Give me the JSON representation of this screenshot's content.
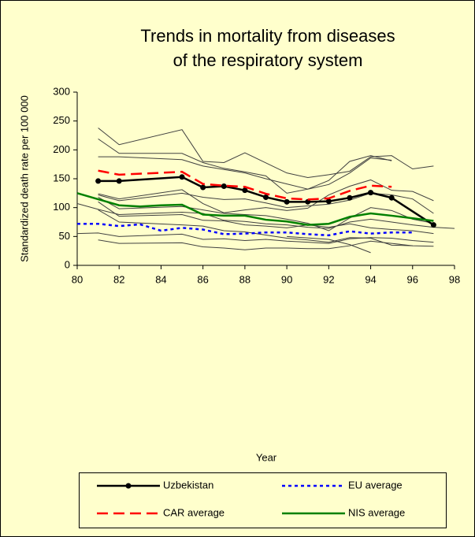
{
  "chart_data": {
    "type": "line",
    "title": [
      "Trends in mortality from diseases",
      "of the respiratory system"
    ],
    "x_label": "Year",
    "y_label": "Standardized death rate per 100 000",
    "xlim": [
      80,
      98
    ],
    "xticks": [
      80,
      82,
      84,
      86,
      88,
      90,
      92,
      94,
      96,
      98
    ],
    "ylim": [
      0,
      300
    ],
    "yticks": [
      0,
      50,
      100,
      150,
      200,
      250,
      300
    ],
    "grid": false,
    "legend": "bottom",
    "series": [
      {
        "color": "#404040",
        "x": [
          81,
          82,
          85,
          86,
          87,
          88,
          90,
          91,
          92,
          93,
          94,
          95,
          96,
          97
        ],
        "values": [
          238,
          209,
          235,
          180,
          178,
          195,
          160,
          152,
          157,
          163,
          188,
          190,
          167,
          172
        ]
      },
      {
        "color": "#404040",
        "x": [
          81,
          82,
          85,
          86,
          87,
          88,
          89,
          90,
          91,
          92,
          93,
          94,
          95
        ],
        "values": [
          219,
          194,
          194,
          178,
          168,
          162,
          155,
          125,
          132,
          147,
          180,
          190,
          181
        ]
      },
      {
        "color": "#404040",
        "x": [
          81,
          82,
          85,
          86,
          88,
          89,
          90,
          91,
          92,
          93,
          94,
          95
        ],
        "values": [
          188,
          188,
          183,
          172,
          160,
          150,
          141,
          132,
          140,
          160,
          186,
          182
        ]
      },
      {
        "color": "#404040",
        "x": [
          81,
          82,
          85,
          86,
          87,
          88,
          89,
          90,
          91,
          92,
          93,
          94,
          95,
          96,
          97
        ],
        "values": [
          124,
          115,
          131,
          107,
          91,
          96,
          100,
          95,
          99,
          122,
          137,
          148,
          130,
          128,
          112
        ]
      },
      {
        "color": "#404040",
        "x": [
          81,
          82,
          85,
          86,
          87,
          88,
          89,
          90,
          91,
          92,
          93,
          94,
          95,
          96,
          97
        ],
        "values": [
          122,
          112,
          125,
          118,
          114,
          115,
          108,
          100,
          103,
          106,
          113,
          125,
          122,
          115,
          90
        ]
      },
      {
        "color": "#404040",
        "x": [
          81,
          82,
          85,
          86,
          87,
          88,
          89,
          90,
          91,
          92,
          93,
          94,
          95,
          96,
          97
        ],
        "values": [
          118,
          98,
          102,
          96,
          90,
          88,
          86,
          80,
          73,
          60,
          82,
          100,
          95,
          80,
          73
        ]
      },
      {
        "color": "#404040",
        "x": [
          80,
          81,
          82,
          85,
          86,
          87,
          88,
          89,
          90,
          91,
          92,
          93,
          94,
          95,
          96,
          97,
          98
        ],
        "values": [
          107,
          97,
          88,
          92,
          90,
          78,
          76,
          72,
          70,
          66,
          64,
          75,
          80,
          75,
          70,
          66,
          64
        ]
      },
      {
        "color": "#404040",
        "x": [
          81,
          82,
          85,
          86,
          87,
          88,
          89,
          90,
          91,
          92,
          93,
          94,
          95,
          96,
          97
        ],
        "values": [
          110,
          85,
          88,
          78,
          77,
          70,
          68,
          65,
          70,
          66,
          72,
          65,
          62,
          60,
          55
        ]
      },
      {
        "color": "#404040",
        "x": [
          81,
          82,
          85,
          86,
          87,
          88,
          90,
          91,
          92,
          93,
          94,
          95,
          96
        ],
        "values": [
          96,
          75,
          70,
          68,
          60,
          58,
          47,
          44,
          40,
          48,
          47,
          35,
          34
        ]
      },
      {
        "color": "#404040",
        "x": [
          80,
          81,
          82,
          85,
          86,
          87,
          88,
          89,
          90,
          91,
          92,
          93,
          94,
          95,
          96,
          97
        ],
        "values": [
          55,
          56,
          50,
          54,
          45,
          46,
          43,
          45,
          42,
          40,
          38,
          46,
          48,
          47,
          43,
          40
        ]
      },
      {
        "color": "#404040",
        "x": [
          81,
          82,
          85,
          86,
          87,
          88,
          89,
          90,
          91,
          92,
          93,
          94,
          95,
          96,
          97
        ],
        "values": [
          44,
          38,
          39,
          32,
          30,
          27,
          30,
          30,
          29,
          29,
          34,
          42,
          38,
          34,
          33
        ]
      },
      {
        "color": "#404040",
        "x": [
          90,
          92,
          93,
          94
        ],
        "values": [
          50,
          45,
          36,
          22
        ]
      },
      {
        "name": "Uzbekistan",
        "color": "#000000",
        "dash": "solid",
        "marker": "circle",
        "x": [
          81,
          82,
          85,
          86,
          87,
          88,
          89,
          90,
          91,
          92,
          93,
          94,
          95,
          97
        ],
        "values": [
          146,
          146,
          153,
          135,
          137,
          130,
          118,
          110,
          110,
          111,
          117,
          126,
          117,
          70
        ]
      },
      {
        "name": "EU average",
        "color": "#0000ff",
        "dash": "dotted",
        "x": [
          80,
          81,
          82,
          83,
          84,
          85,
          86,
          87,
          88,
          89,
          90,
          91,
          92,
          93,
          94,
          95,
          96
        ],
        "values": [
          72,
          72,
          68,
          71,
          60,
          65,
          62,
          54,
          55,
          57,
          57,
          54,
          52,
          59,
          55,
          57,
          57
        ]
      },
      {
        "name": "CAR average",
        "color": "#ff0000",
        "dash": "dashed",
        "x": [
          81,
          82,
          85,
          86,
          87,
          88,
          89,
          90,
          91,
          92,
          93,
          94,
          95
        ],
        "values": [
          164,
          157,
          162,
          141,
          138,
          136,
          124,
          116,
          114,
          116,
          129,
          138,
          136
        ]
      },
      {
        "name": "NIS average",
        "color": "#008000",
        "dash": "solid",
        "x": [
          80,
          82,
          83,
          84,
          85,
          86,
          87,
          88,
          89,
          90,
          91,
          92,
          93,
          94,
          95,
          97
        ],
        "values": [
          125,
          104,
          102,
          104,
          105,
          88,
          86,
          86,
          79,
          76,
          70,
          72,
          84,
          90,
          86,
          77
        ]
      }
    ]
  }
}
